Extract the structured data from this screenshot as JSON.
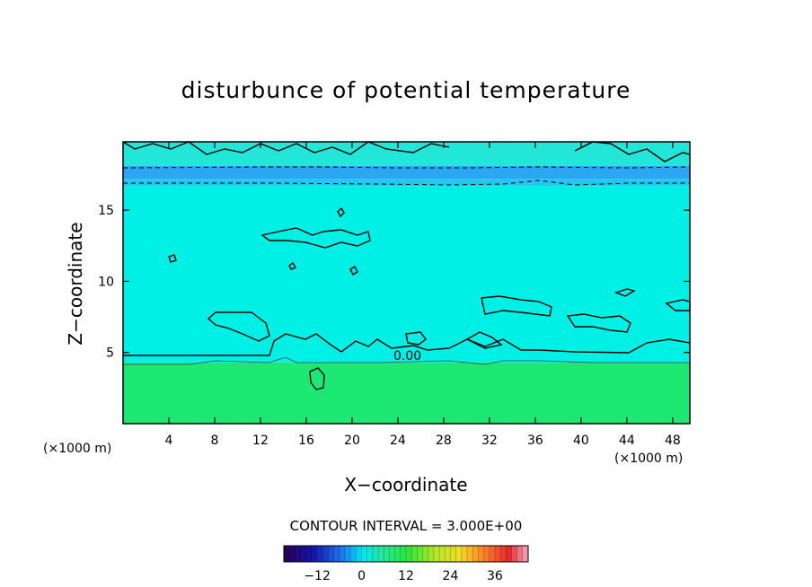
{
  "chart_data": {
    "type": "heatmap",
    "title": "disturbunce of potential temperature",
    "xlabel": "X−coordinate",
    "ylabel": "Z−coordinate",
    "x_unit_left": "(×1000 m)",
    "x_unit_right": "(×1000 m)",
    "xlim": [
      0,
      49.5
    ],
    "ylim": [
      0,
      19.8
    ],
    "x_ticks": [
      4,
      8,
      12,
      16,
      20,
      24,
      28,
      32,
      36,
      40,
      44,
      48
    ],
    "y_ticks": [
      5,
      10,
      15
    ],
    "contour_interval_text": "CONTOUR INTERVAL = 3.000E+00",
    "contour_label": "0.00",
    "colorbar_ticks": [
      -12,
      0,
      12,
      24,
      36
    ],
    "colorbar_range": [
      -21,
      45
    ],
    "layers": [
      {
        "z_range": [
          0,
          4.3
        ],
        "value": 3,
        "color": "#1ee874"
      },
      {
        "z_range": [
          4.3,
          16.7
        ],
        "value": -1.5,
        "color": "#00f0e6"
      },
      {
        "z_range": [
          16.7,
          17.2
        ],
        "value": -3,
        "color": "#22c8f0"
      },
      {
        "z_range": [
          17.2,
          18.1
        ],
        "value": -4.5,
        "color": "#2aa6f2"
      },
      {
        "z_range": [
          18.1,
          19.8
        ],
        "value": -1.5,
        "color": "#22e6d8"
      }
    ]
  }
}
